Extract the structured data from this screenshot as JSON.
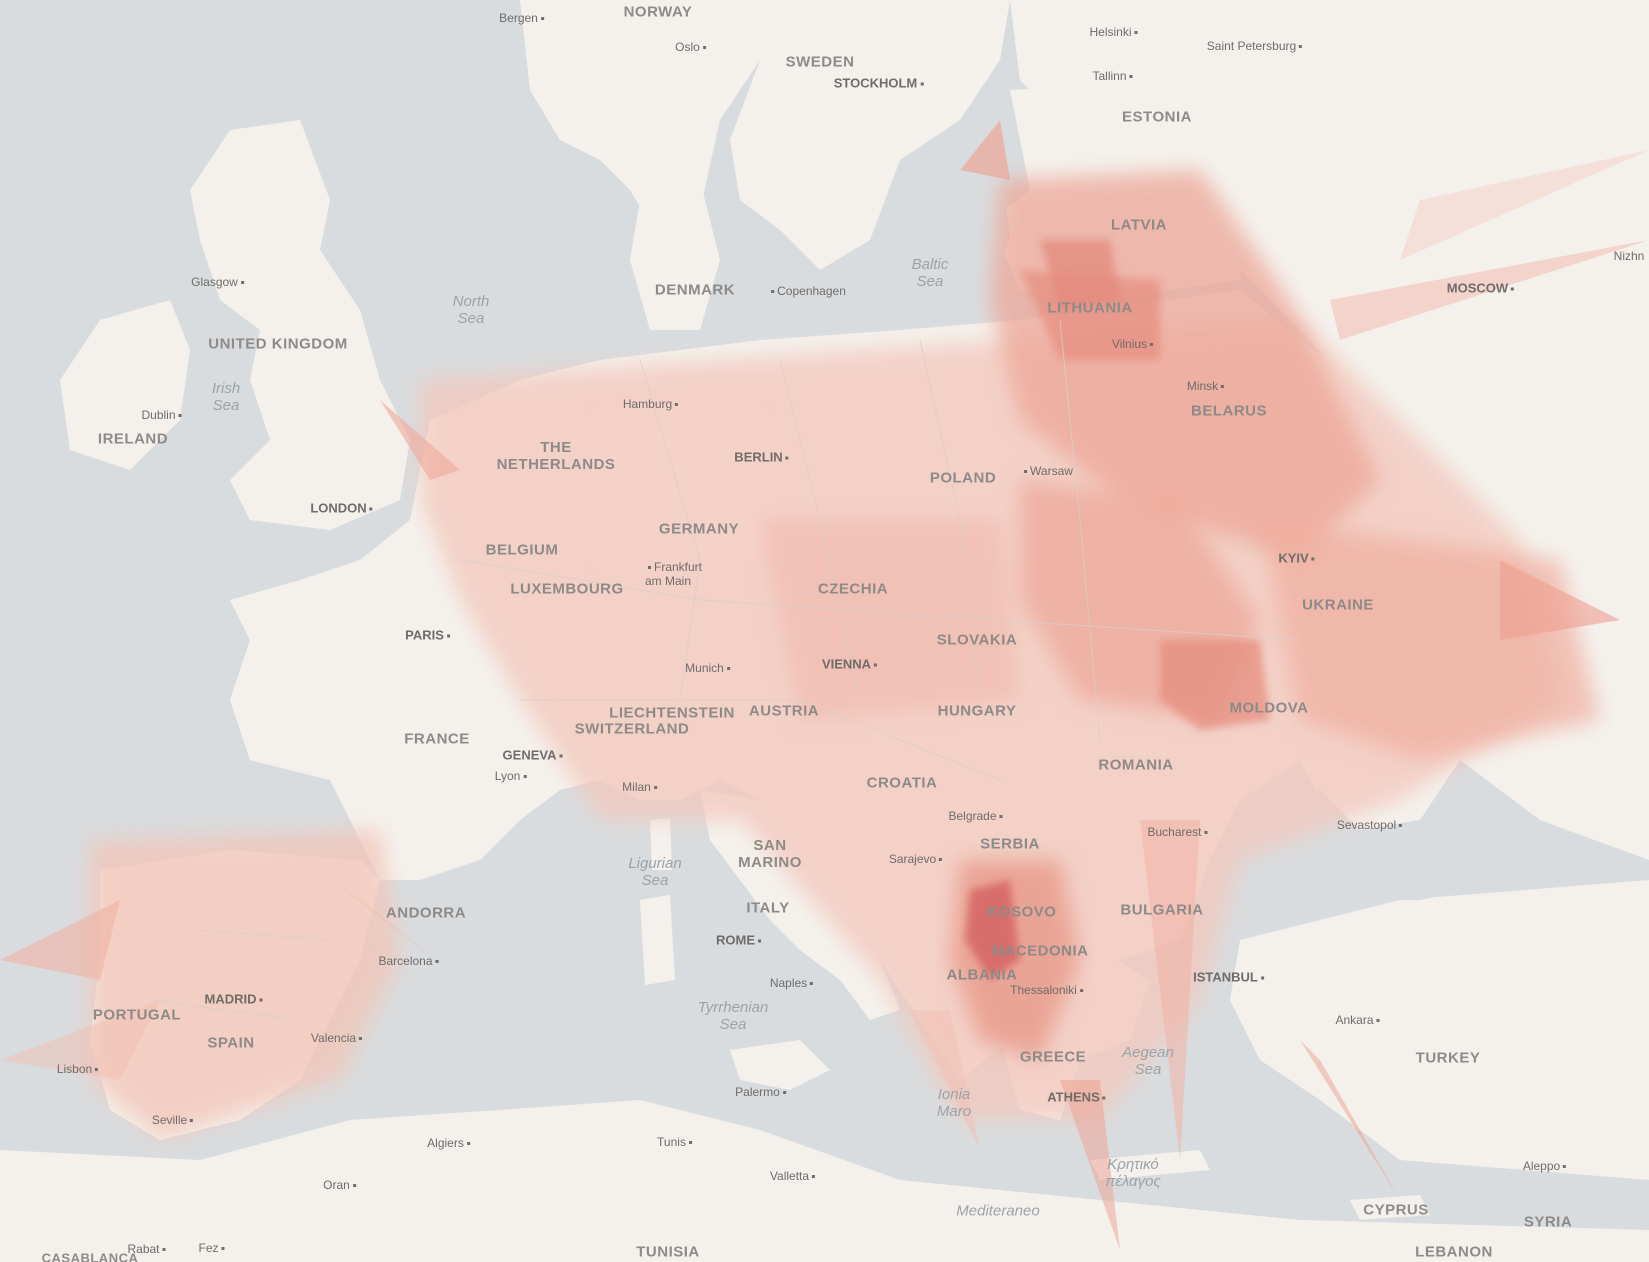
{
  "colors": {
    "sea": "#d9dcde",
    "land": "#f4f1ed",
    "choropleth_light": "#f6d3c9",
    "choropleth_mid": "#ec9c8c",
    "choropleth_dark": "#c94a44",
    "label": "#6f6c6a"
  },
  "countries": [
    {
      "name": "NORWAY"
    },
    {
      "name": "SWEDEN"
    },
    {
      "name": "ESTONIA"
    },
    {
      "name": "LATVIA"
    },
    {
      "name": "LITHUANIA"
    },
    {
      "name": "DENMARK"
    },
    {
      "name": "UNITED KINGDOM"
    },
    {
      "name": "IRELAND"
    },
    {
      "name": "THE NETHERLANDS"
    },
    {
      "name": "BELGIUM"
    },
    {
      "name": "LUXEMBOURG"
    },
    {
      "name": "GERMANY"
    },
    {
      "name": "POLAND"
    },
    {
      "name": "BELARUS"
    },
    {
      "name": "UKRAINE"
    },
    {
      "name": "CZECHIA"
    },
    {
      "name": "SLOVAKIA"
    },
    {
      "name": "AUSTRIA"
    },
    {
      "name": "HUNGARY"
    },
    {
      "name": "LIECHTENSTEIN"
    },
    {
      "name": "SWITZERLAND"
    },
    {
      "name": "FRANCE"
    },
    {
      "name": "MOLDOVA"
    },
    {
      "name": "ROMANIA"
    },
    {
      "name": "CROATIA"
    },
    {
      "name": "SERBIA"
    },
    {
      "name": "SAN MARINO"
    },
    {
      "name": "ITALY"
    },
    {
      "name": "KOSOVO"
    },
    {
      "name": "BULGARIA"
    },
    {
      "name": "MACEDONIA"
    },
    {
      "name": "ALBANIA"
    },
    {
      "name": "GREECE"
    },
    {
      "name": "TURKEY"
    },
    {
      "name": "ANDORRA"
    },
    {
      "name": "PORTUGAL"
    },
    {
      "name": "SPAIN"
    },
    {
      "name": "TUNISIA"
    },
    {
      "name": "SYRIA"
    },
    {
      "name": "CYPRUS"
    },
    {
      "name": "LEBANON"
    },
    {
      "name": "CASABLANCA"
    }
  ],
  "capitals": [
    {
      "name": "STOCKHOLM"
    },
    {
      "name": "MOSCOW"
    },
    {
      "name": "LONDON"
    },
    {
      "name": "BERLIN"
    },
    {
      "name": "PARIS"
    },
    {
      "name": "VIENNA"
    },
    {
      "name": "KYIV"
    },
    {
      "name": "ROME"
    },
    {
      "name": "MADRID"
    },
    {
      "name": "ATHENS"
    },
    {
      "name": "ISTANBUL"
    },
    {
      "name": "GENEVA"
    }
  ],
  "cities": [
    {
      "name": "Bergen"
    },
    {
      "name": "Oslo"
    },
    {
      "name": "Helsinki"
    },
    {
      "name": "Saint Petersburg"
    },
    {
      "name": "Tallinn"
    },
    {
      "name": "Glasgow"
    },
    {
      "name": "Copenhagen"
    },
    {
      "name": "Dublin"
    },
    {
      "name": "Hamburg"
    },
    {
      "name": "Vilnius"
    },
    {
      "name": "Minsk"
    },
    {
      "name": "Warsaw"
    },
    {
      "name": "Frankfurt am Main"
    },
    {
      "name": "Munich"
    },
    {
      "name": "Lyon"
    },
    {
      "name": "Milan"
    },
    {
      "name": "Belgrade"
    },
    {
      "name": "Bucharest"
    },
    {
      "name": "Sevastopol"
    },
    {
      "name": "Sarajevo"
    },
    {
      "name": "Barcelona"
    },
    {
      "name": "Naples"
    },
    {
      "name": "Thessaloniki"
    },
    {
      "name": "Ankara"
    },
    {
      "name": "Valencia"
    },
    {
      "name": "Lisbon"
    },
    {
      "name": "Seville"
    },
    {
      "name": "Palermo"
    },
    {
      "name": "Algiers"
    },
    {
      "name": "Tunis"
    },
    {
      "name": "Oran"
    },
    {
      "name": "Valletta"
    },
    {
      "name": "Aleppo"
    },
    {
      "name": "Rabat"
    },
    {
      "name": "Fez"
    },
    {
      "name": "Nizhn"
    }
  ],
  "seas": [
    {
      "name": "North Sea"
    },
    {
      "name": "Irish Sea"
    },
    {
      "name": "Baltic Sea"
    },
    {
      "name": "Ligurian Sea"
    },
    {
      "name": "Tyrrhenian Sea"
    },
    {
      "name": "Ionia Maro"
    },
    {
      "name": "Aegean Sea"
    },
    {
      "name": "Κρητικό πέλαγος"
    },
    {
      "name": "Mediteraneo"
    }
  ]
}
